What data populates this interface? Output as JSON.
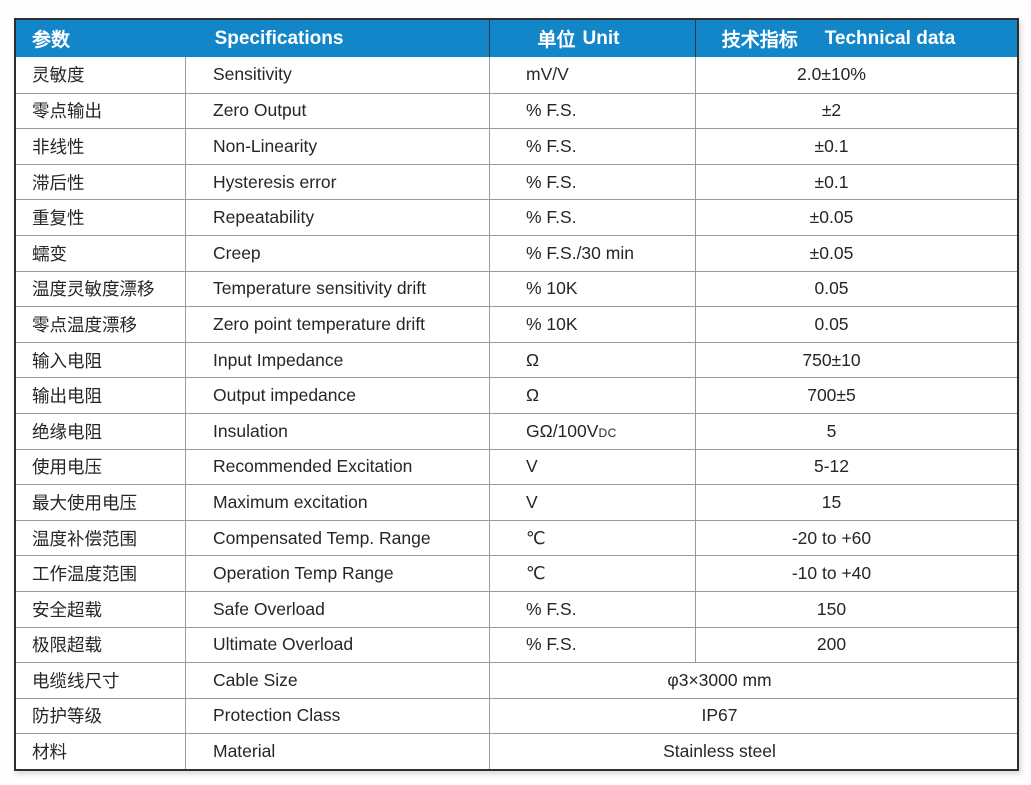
{
  "table": {
    "header": {
      "col_param_cn": "参数",
      "col_spec_en": "Specifications",
      "col_unit_cn": "单位",
      "col_unit_en": "Unit",
      "col_tech_cn": "技术指标",
      "col_tech_en": "Technical data"
    },
    "rows": [
      {
        "param_cn": "灵敏度",
        "spec_en": "Sensitivity",
        "unit": "mV/V",
        "value": "2.0±10%"
      },
      {
        "param_cn": "零点输出",
        "spec_en": "Zero Output",
        "unit": "% F.S.",
        "value": "±2"
      },
      {
        "param_cn": "非线性",
        "spec_en": "Non-Linearity",
        "unit": "% F.S.",
        "value": "±0.1"
      },
      {
        "param_cn": "滞后性",
        "spec_en": "Hysteresis error",
        "unit": "% F.S.",
        "value": "±0.1"
      },
      {
        "param_cn": "重复性",
        "spec_en": "Repeatability",
        "unit": "% F.S.",
        "value": "±0.05"
      },
      {
        "param_cn": "蠕变",
        "spec_en": "Creep",
        "unit": "% F.S./30 min",
        "value": "±0.05"
      },
      {
        "param_cn": "温度灵敏度漂移",
        "spec_en": "Temperature sensitivity drift",
        "unit": "% 10K",
        "value": "0.05"
      },
      {
        "param_cn": "零点温度漂移",
        "spec_en": "Zero point temperature drift",
        "unit": "% 10K",
        "value": "0.05"
      },
      {
        "param_cn": "输入电阻",
        "spec_en": "Input Impedance",
        "unit": "Ω",
        "value": "750±10"
      },
      {
        "param_cn": "输出电阻",
        "spec_en": "Output impedance",
        "unit": "Ω",
        "value": "700±5"
      },
      {
        "param_cn": "绝缘电阻",
        "spec_en": "Insulation",
        "unit": "GΩ/100V",
        "unit_suffix": "DC",
        "value": "5"
      },
      {
        "param_cn": "使用电压",
        "spec_en": "Recommended Excitation",
        "unit": "V",
        "value": "5-12"
      },
      {
        "param_cn": "最大使用电压",
        "spec_en": "Maximum excitation",
        "unit": "V",
        "value": "15"
      },
      {
        "param_cn": "温度补偿范围",
        "spec_en": "Compensated Temp. Range",
        "unit": "℃",
        "value": "-20 to +60"
      },
      {
        "param_cn": "工作温度范围",
        "spec_en": "Operation Temp Range",
        "unit": "℃",
        "value": "-10 to +40"
      },
      {
        "param_cn": "安全超载",
        "spec_en": "Safe Overload",
        "unit": "% F.S.",
        "value": "150"
      },
      {
        "param_cn": "极限超载",
        "spec_en": "Ultimate Overload",
        "unit": "% F.S.",
        "value": "200"
      },
      {
        "param_cn": "电缆线尺寸",
        "spec_en": "Cable Size",
        "merged": true,
        "value": "φ3×3000 mm"
      },
      {
        "param_cn": "防护等级",
        "spec_en": "Protection Class",
        "merged": true,
        "value": "IP67"
      },
      {
        "param_cn": "材料",
        "spec_en": "Material",
        "merged": true,
        "value": "Stainless steel"
      }
    ],
    "colors": {
      "header_bg": "#1286c8",
      "header_text": "#ffffff",
      "inner_border": "#9a9a9a",
      "outer_border": "#2e2e2e",
      "body_text": "#262626"
    }
  }
}
